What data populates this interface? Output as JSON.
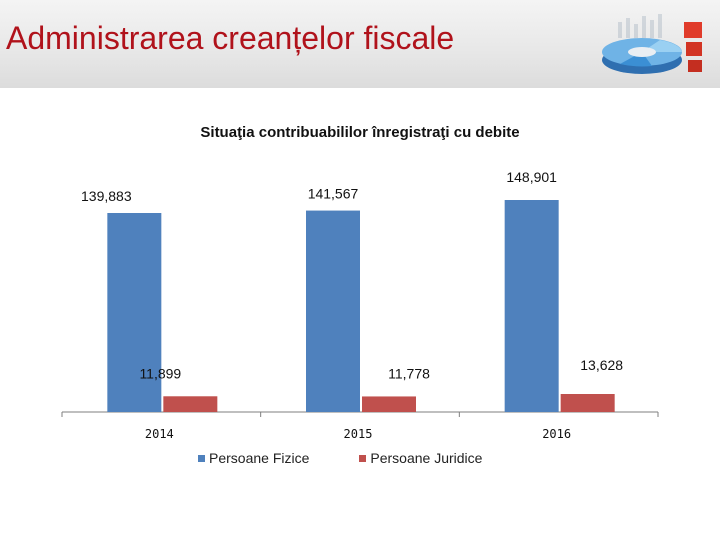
{
  "header": {
    "title": "Administrarea creanțelor fiscale"
  },
  "colors": {
    "fizice": "#4f81bd",
    "juridice": "#c0504d",
    "title": "#b0121b"
  },
  "logo": {
    "icon": "pie-chart-logo-icon"
  },
  "chart_data": {
    "type": "bar",
    "title": "Situaţia contribuabililor înregistraţi cu debite",
    "categories": [
      "2014",
      "2015",
      "2016"
    ],
    "series": [
      {
        "name": "Persoane Fizice",
        "values": [
          139883,
          141567,
          148901
        ],
        "labels": [
          "139,883",
          "141,567",
          "148,901"
        ]
      },
      {
        "name": "Persoane Juridice",
        "values": [
          11899,
          11778,
          13628
        ],
        "labels": [
          "11,899",
          "11,778",
          "13,628"
        ]
      }
    ],
    "legend_position": "bottom",
    "grid": false
  }
}
